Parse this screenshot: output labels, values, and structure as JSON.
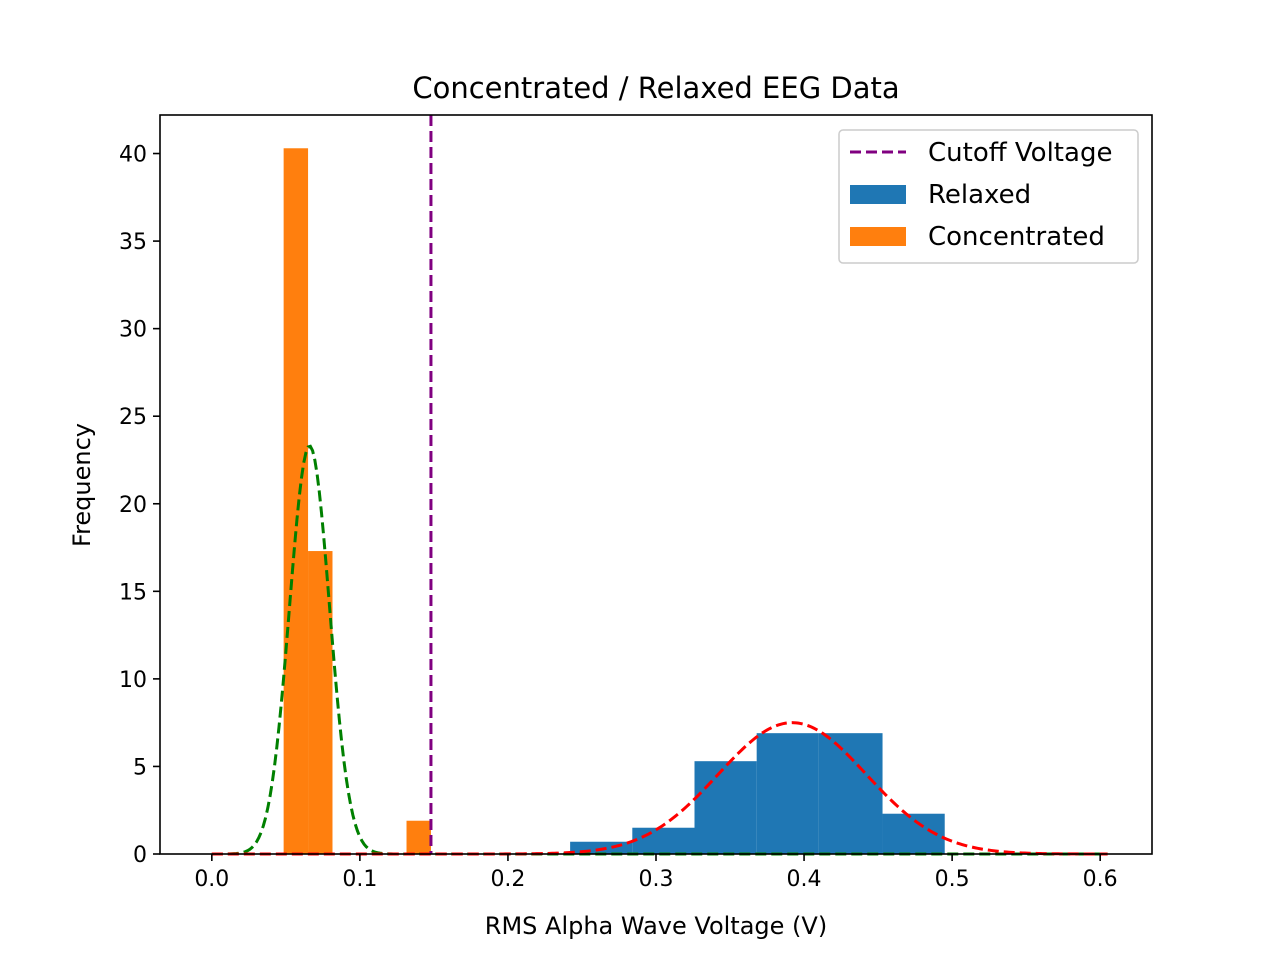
{
  "chart_data": {
    "type": "bar",
    "title": "Concentrated / Relaxed EEG Data",
    "xlabel": "RMS Alpha Wave Voltage (V)",
    "ylabel": "Frequency",
    "xlim": [
      -0.035,
      0.635
    ],
    "ylim": [
      0,
      42.2
    ],
    "xticks": [
      0.0,
      0.1,
      0.2,
      0.3,
      0.4,
      0.5,
      0.6
    ],
    "xtick_labels": [
      "0.0",
      "0.1",
      "0.2",
      "0.3",
      "0.4",
      "0.5",
      "0.6"
    ],
    "yticks": [
      0,
      5,
      10,
      15,
      20,
      25,
      30,
      35,
      40
    ],
    "ytick_labels": [
      "0",
      "5",
      "10",
      "15",
      "20",
      "25",
      "30",
      "35",
      "40"
    ],
    "grid": false,
    "legend_position": "top-right",
    "legend": [
      {
        "label": "Cutoff Voltage",
        "kind": "dashed-line",
        "color": "#800080"
      },
      {
        "label": "Relaxed",
        "kind": "patch",
        "color": "#1f77b4"
      },
      {
        "label": "Concentrated",
        "kind": "patch",
        "color": "#ff7f0e"
      }
    ],
    "cutoff": {
      "name": "Cutoff Voltage",
      "x": 0.148,
      "color": "#800080"
    },
    "histograms": [
      {
        "name": "Relaxed",
        "color": "#1f77b4",
        "bins": [
          {
            "x0": 0.242,
            "x1": 0.284,
            "value": 0.7
          },
          {
            "x0": 0.284,
            "x1": 0.326,
            "value": 1.5
          },
          {
            "x0": 0.326,
            "x1": 0.368,
            "value": 5.3
          },
          {
            "x0": 0.368,
            "x1": 0.41,
            "value": 6.9
          },
          {
            "x0": 0.41,
            "x1": 0.453,
            "value": 6.9
          },
          {
            "x0": 0.453,
            "x1": 0.495,
            "value": 2.3
          }
        ]
      },
      {
        "name": "Concentrated",
        "color": "#ff7f0e",
        "bins": [
          {
            "x0": 0.0485,
            "x1": 0.065,
            "value": 40.3
          },
          {
            "x0": 0.065,
            "x1": 0.0815,
            "value": 17.3
          },
          {
            "x0": 0.1315,
            "x1": 0.148,
            "value": 1.9
          }
        ]
      }
    ],
    "fit_curves": [
      {
        "name": "Concentrated normal fit",
        "color": "#008000",
        "mean": 0.066,
        "sd": 0.0135,
        "peak": 23.3,
        "x_range": [
          0.0,
          0.605
        ]
      },
      {
        "name": "Relaxed normal fit",
        "color": "#ff0000",
        "mean": 0.392,
        "sd": 0.05,
        "peak": 7.5,
        "x_range": [
          0.0,
          0.605
        ]
      }
    ]
  }
}
